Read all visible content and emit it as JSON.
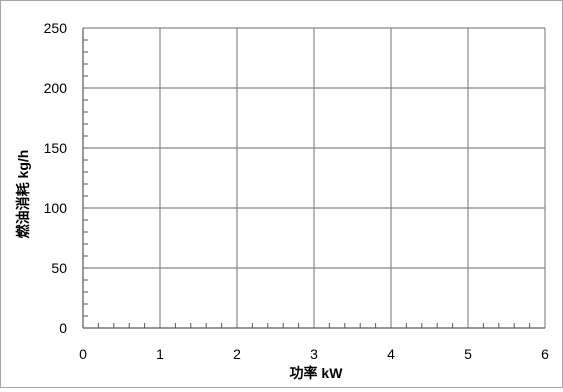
{
  "chart_data": {
    "type": "line",
    "title": "",
    "xlabel": "功率 kW",
    "ylabel": "燃油消耗 kg/h",
    "xlim": [
      0,
      6
    ],
    "ylim": [
      0,
      250
    ],
    "x_ticks": [
      "0",
      "1",
      "2",
      "3",
      "4",
      "5",
      "6"
    ],
    "y_ticks": [
      "0",
      "50",
      "100",
      "150",
      "200",
      "250"
    ],
    "x_minor_per_major": 5,
    "y_minor_per_major": 5,
    "grid": true,
    "legend": "none",
    "series": []
  },
  "colors": {
    "grid": "#888888",
    "axis": "#595959",
    "frame": "#a6a6a6"
  }
}
